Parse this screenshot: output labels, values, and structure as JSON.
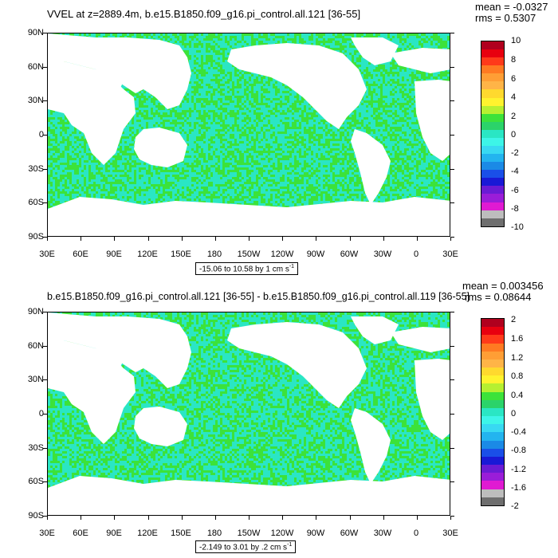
{
  "panels": [
    {
      "title": "VVEL at z=2889.4m, b.e15.B1850.f09_g16.pi_control.all.121 [36-55]",
      "mean": "mean = -0.0327",
      "rms": "rms = 0.5307",
      "range": "-15.06 to 10.58 by 1 cm s",
      "range_unit_exp": "-1",
      "colorbar_labels": [
        "10",
        "8",
        "6",
        "4",
        "2",
        "0",
        "-2",
        "-4",
        "-6",
        "-8",
        "-10"
      ],
      "colorbar_colors": [
        "#b0001e",
        "#e8000f",
        "#ff3a1a",
        "#ff7a22",
        "#ff9e35",
        "#ffb447",
        "#ffd92e",
        "#fff32e",
        "#b6f031",
        "#3ce23a",
        "#2bd36a",
        "#2ae6c4",
        "#3df5e8",
        "#38d9f2",
        "#23b4ef",
        "#1b8ae6",
        "#1a4fe8",
        "#1919d6",
        "#6a1bd4",
        "#9a1dd8",
        "#e01ad2",
        "#bdbdbd",
        "#6e6e6e"
      ]
    },
    {
      "title": "b.e15.B1850.f09_g16.pi_control.all.121 [36-55] - b.e15.B1850.f09_g16.pi_control.all.119 [36-55]",
      "mean": "mean = 0.003456",
      "rms": "rms = 0.08644",
      "range": "-2.149 to 3.01 by .2 cm s",
      "range_unit_exp": "-1",
      "colorbar_labels": [
        "2",
        "1.6",
        "1.2",
        "0.8",
        "0.4",
        "0",
        "-0.4",
        "-0.8",
        "-1.2",
        "-1.6",
        "-2"
      ],
      "colorbar_colors": [
        "#b0001e",
        "#e8000f",
        "#ff3a1a",
        "#ff7a22",
        "#ff9e35",
        "#ffb447",
        "#ffd92e",
        "#fff32e",
        "#b6f031",
        "#3ce23a",
        "#2bd36a",
        "#2ae6c4",
        "#3df5e8",
        "#38d9f2",
        "#23b4ef",
        "#1b8ae6",
        "#1a4fe8",
        "#1919d6",
        "#6a1bd4",
        "#9a1dd8",
        "#e01ad2",
        "#bdbdbd",
        "#6e6e6e"
      ]
    }
  ],
  "lat_labels": [
    "90N",
    "60N",
    "30N",
    "0",
    "30S",
    "60S",
    "90S"
  ],
  "lon_labels": [
    "30E",
    "60E",
    "90E",
    "120E",
    "150E",
    "180",
    "150W",
    "120W",
    "90W",
    "60W",
    "30W",
    "0",
    "30E"
  ],
  "colors": {
    "ocean_cyan": "#2ae6c4",
    "ocean_green": "#3ce23a",
    "land": "#ffffff"
  }
}
